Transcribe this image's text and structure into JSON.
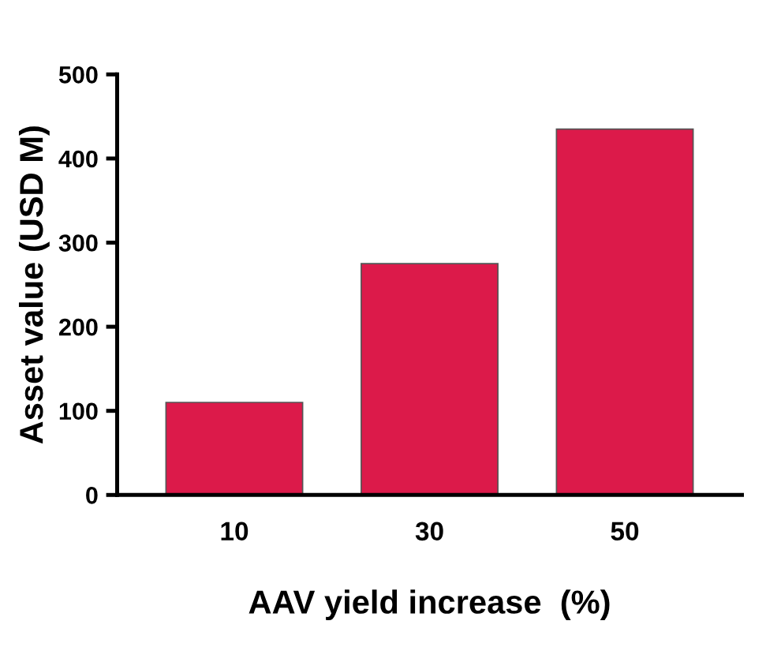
{
  "chart_data": {
    "type": "bar",
    "xlabel": "AAV yield increase  (%)",
    "ylabel": "Asset value (USD M)",
    "categories": [
      "10",
      "30",
      "50"
    ],
    "values": [
      110,
      275,
      435
    ],
    "color": "#dc1a4a",
    "ylim": [
      0,
      500
    ],
    "yticks": [
      0,
      100,
      200,
      300,
      400,
      500
    ],
    "grid": false
  }
}
